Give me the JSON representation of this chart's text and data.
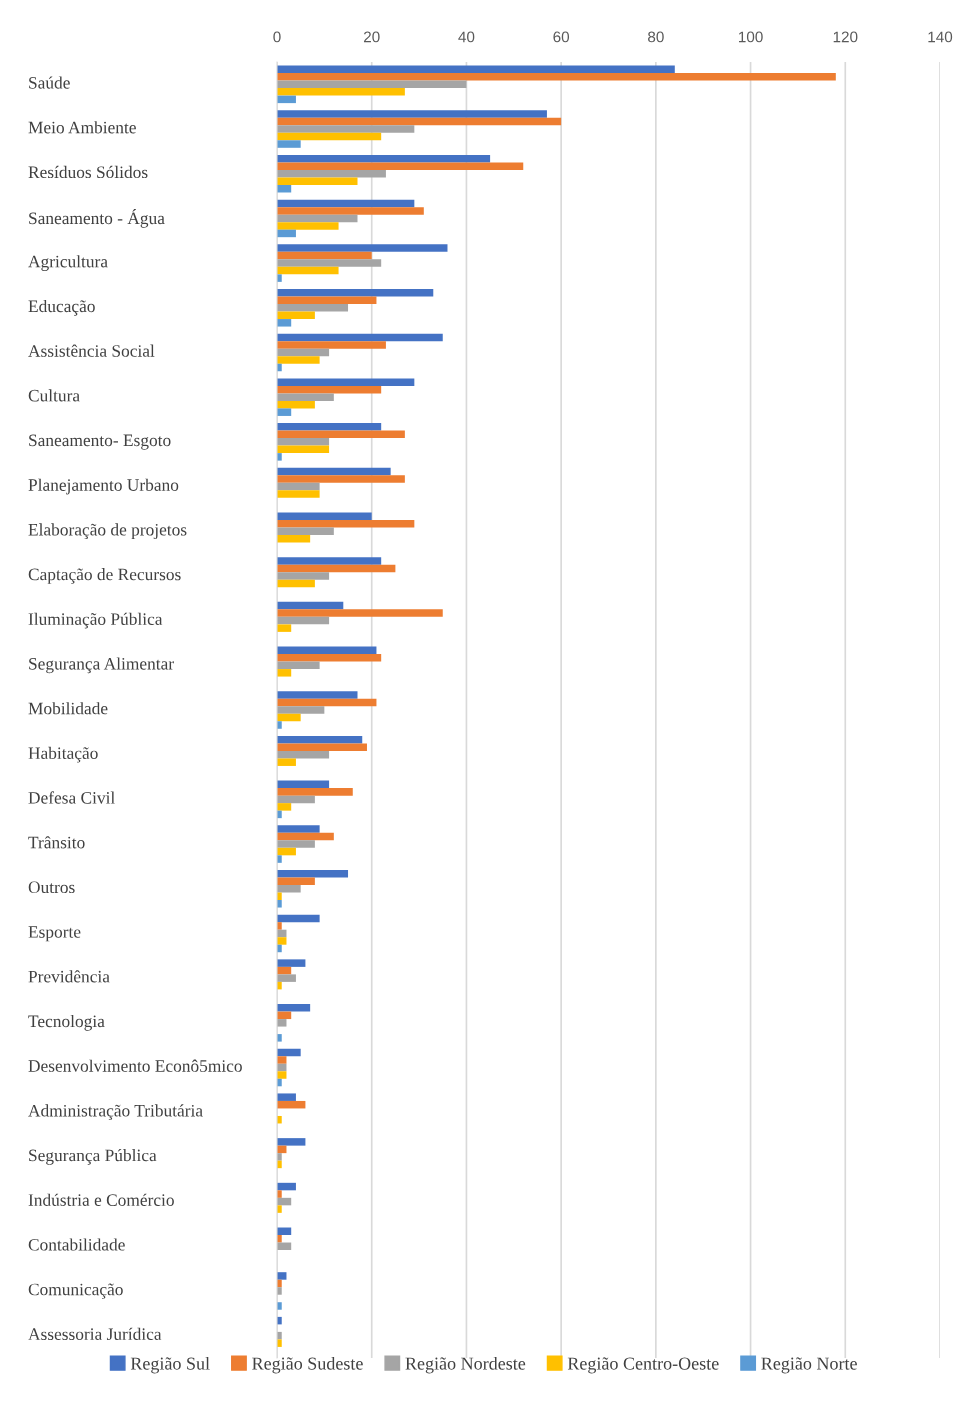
{
  "chart_data": {
    "type": "bar",
    "orientation": "horizontal",
    "categories": [
      "Saúde",
      "Meio Ambiente",
      "Resíduos Sólidos",
      "Saneamento - Água",
      "Agricultura",
      "Educação",
      "Assistência Social",
      "Cultura",
      "Saneamento- Esgoto",
      "Planejamento Urbano",
      "Elaboração de projetos",
      "Captação de Recursos",
      "Iluminação Pública",
      "Segurança Alimentar",
      "Mobilidade",
      "Habitação",
      "Defesa Civil",
      "Trânsito",
      "Outros",
      "Esporte",
      "Previdência",
      "Tecnologia",
      "Desenvolvimento Econô5mico",
      "Administração Tributária",
      "Segurança Pública",
      "Indústria e Comércio",
      "Contabilidade",
      "Comunicação",
      "Assessoria Jurídica"
    ],
    "series": [
      {
        "name": "Região Sul",
        "color": "#4472c4",
        "values": [
          84,
          57,
          45,
          29,
          36,
          33,
          35,
          29,
          22,
          24,
          20,
          22,
          14,
          21,
          17,
          18,
          11,
          9,
          15,
          9,
          6,
          7,
          5,
          4,
          6,
          4,
          3,
          2,
          1
        ]
      },
      {
        "name": "Região Sudeste",
        "color": "#ed7d31",
        "values": [
          118,
          60,
          52,
          31,
          20,
          21,
          23,
          22,
          27,
          27,
          29,
          25,
          35,
          22,
          21,
          19,
          16,
          12,
          8,
          1,
          3,
          3,
          2,
          6,
          2,
          1,
          1,
          1,
          0
        ]
      },
      {
        "name": "Região Nordeste",
        "color": "#a5a5a5",
        "values": [
          40,
          29,
          23,
          17,
          22,
          15,
          11,
          12,
          11,
          9,
          12,
          11,
          11,
          9,
          10,
          11,
          8,
          8,
          5,
          2,
          4,
          2,
          2,
          0,
          1,
          3,
          3,
          1,
          1
        ]
      },
      {
        "name": "Região Centro-Oeste",
        "color": "#ffc000",
        "values": [
          27,
          22,
          17,
          13,
          13,
          8,
          9,
          8,
          11,
          9,
          7,
          8,
          3,
          3,
          5,
          4,
          3,
          4,
          1,
          2,
          1,
          0,
          2,
          1,
          1,
          1,
          0,
          0,
          1
        ]
      },
      {
        "name": "Região Norte",
        "color": "#5b9bd5",
        "values": [
          4,
          5,
          3,
          4,
          1,
          3,
          1,
          3,
          1,
          0,
          0,
          0,
          0,
          0,
          1,
          0,
          1,
          1,
          1,
          1,
          0,
          1,
          1,
          0,
          0,
          0,
          0,
          1,
          0
        ]
      }
    ],
    "xlim": [
      0,
      140
    ],
    "xticks": [
      0,
      20,
      40,
      60,
      80,
      100,
      120,
      140
    ],
    "grid": "x",
    "legend": "bottom"
  }
}
